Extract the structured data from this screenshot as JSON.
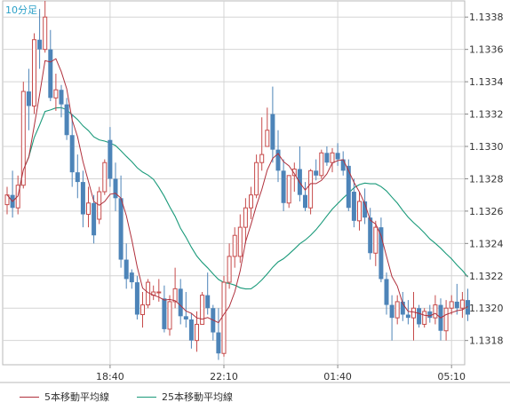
{
  "chart_data": {
    "type": "candlestick",
    "timeframe_label": "10分足",
    "y_ticks": [
      "1.1338",
      "1.1336",
      "1.1334",
      "1.1332",
      "1.1330",
      "1.1328",
      "1.1326",
      "1.1324",
      "1.1322",
      "1.1320",
      "1.1318"
    ],
    "ylim": [
      1.13165,
      1.1339
    ],
    "x_ticks": [
      {
        "label": "18:40",
        "index": 19
      },
      {
        "label": "22:10",
        "index": 40
      },
      {
        "label": "01:40",
        "index": 61
      },
      {
        "label": "05:10",
        "index": 82
      }
    ],
    "grid": true,
    "candles": [
      [
        1.13264,
        1.13275,
        1.13258,
        1.1327
      ],
      [
        1.1327,
        1.13285,
        1.13256,
        1.13262
      ],
      [
        1.13262,
        1.13282,
        1.13258,
        1.13276
      ],
      [
        1.13276,
        1.1334,
        1.13274,
        1.13334
      ],
      [
        1.13334,
        1.13348,
        1.1331,
        1.13325
      ],
      [
        1.13325,
        1.1337,
        1.1332,
        1.13366
      ],
      [
        1.13366,
        1.13385,
        1.13348,
        1.1336
      ],
      [
        1.1336,
        1.1339,
        1.13358,
        1.1338
      ],
      [
        1.1336,
        1.13372,
        1.13328,
        1.1333
      ],
      [
        1.1333,
        1.13345,
        1.13322,
        1.13335
      ],
      [
        1.13335,
        1.13338,
        1.13318,
        1.13326
      ],
      [
        1.13326,
        1.1333,
        1.13304,
        1.13307
      ],
      [
        1.13307,
        1.1332,
        1.13275,
        1.13284
      ],
      [
        1.13284,
        1.13295,
        1.13268,
        1.13278
      ],
      [
        1.13278,
        1.13285,
        1.1325,
        1.13258
      ],
      [
        1.13258,
        1.13275,
        1.1325,
        1.13265
      ],
      [
        1.13265,
        1.1327,
        1.1324,
        1.13245
      ],
      [
        1.13255,
        1.13275,
        1.13252,
        1.13272
      ],
      [
        1.13272,
        1.13292,
        1.1327,
        1.1329
      ],
      [
        1.13304,
        1.13312,
        1.13275,
        1.1328
      ],
      [
        1.1328,
        1.1329,
        1.1326,
        1.13268
      ],
      [
        1.13268,
        1.13282,
        1.13225,
        1.1323
      ],
      [
        1.1323,
        1.1324,
        1.13212,
        1.13218
      ],
      [
        1.13222,
        1.13224,
        1.13212,
        1.13216
      ],
      [
        1.13216,
        1.1322,
        1.13193,
        1.13196
      ],
      [
        1.13196,
        1.1321,
        1.13188,
        1.13202
      ],
      [
        1.13202,
        1.13218,
        1.132,
        1.13216
      ],
      [
        1.13208,
        1.13214,
        1.13205,
        1.1321
      ],
      [
        1.1321,
        1.13218,
        1.13204,
        1.1321
      ],
      [
        1.13206,
        1.13214,
        1.13185,
        1.13187
      ],
      [
        1.13187,
        1.13208,
        1.13183,
        1.13204
      ],
      [
        1.13204,
        1.13225,
        1.132,
        1.13212
      ],
      [
        1.13212,
        1.13218,
        1.1319,
        1.13195
      ],
      [
        1.13195,
        1.1321,
        1.13188,
        1.13193
      ],
      [
        1.13193,
        1.13197,
        1.13175,
        1.1318
      ],
      [
        1.1318,
        1.13198,
        1.13173,
        1.1319
      ],
      [
        1.1319,
        1.1321,
        1.1319,
        1.13208
      ],
      [
        1.13208,
        1.13222,
        1.13196,
        1.132
      ],
      [
        1.132,
        1.13202,
        1.1318,
        1.13185
      ],
      [
        1.13185,
        1.132,
        1.13168,
        1.13172
      ],
      [
        1.13172,
        1.1322,
        1.1317,
        1.13216
      ],
      [
        1.13216,
        1.1324,
        1.13212,
        1.13232
      ],
      [
        1.13232,
        1.1325,
        1.13225,
        1.13245
      ],
      [
        1.13232,
        1.13258,
        1.13228,
        1.1325
      ],
      [
        1.1325,
        1.13268,
        1.1324,
        1.13262
      ],
      [
        1.13262,
        1.13275,
        1.13255,
        1.1327
      ],
      [
        1.1327,
        1.13295,
        1.13268,
        1.1329
      ],
      [
        1.1329,
        1.13318,
        1.13285,
        1.13295
      ],
      [
        1.133,
        1.13324,
        1.133,
        1.1331
      ],
      [
        1.1332,
        1.13337,
        1.1329,
        1.13298
      ],
      [
        1.13298,
        1.1331,
        1.13278,
        1.13285
      ],
      [
        1.13285,
        1.13292,
        1.1326,
        1.13265
      ],
      [
        1.13265,
        1.13282,
        1.13262,
        1.13282
      ],
      [
        1.13282,
        1.1329,
        1.13272,
        1.13286
      ],
      [
        1.13286,
        1.133,
        1.13266,
        1.1327
      ],
      [
        1.1327,
        1.13278,
        1.1326,
        1.13262
      ],
      [
        1.13262,
        1.13286,
        1.13258,
        1.13285
      ],
      [
        1.13285,
        1.13292,
        1.13279,
        1.13282
      ],
      [
        1.13282,
        1.13298,
        1.1328,
        1.13296
      ],
      [
        1.13296,
        1.133,
        1.13288,
        1.1329
      ],
      [
        1.1329,
        1.13299,
        1.13284,
        1.13296
      ],
      [
        1.13296,
        1.13302,
        1.13288,
        1.13292
      ],
      [
        1.13292,
        1.13297,
        1.13282,
        1.13285
      ],
      [
        1.13288,
        1.13292,
        1.1326,
        1.13262
      ],
      [
        1.13272,
        1.1328,
        1.1325,
        1.13254
      ],
      [
        1.13254,
        1.13272,
        1.13248,
        1.13266
      ],
      [
        1.13266,
        1.13274,
        1.13252,
        1.13256
      ],
      [
        1.13256,
        1.13262,
        1.1323,
        1.13234
      ],
      [
        1.13234,
        1.13254,
        1.13226,
        1.1325
      ],
      [
        1.1325,
        1.13256,
        1.13216,
        1.13218
      ],
      [
        1.13218,
        1.13222,
        1.13196,
        1.13202
      ],
      [
        1.13202,
        1.13208,
        1.1318,
        1.13194
      ],
      [
        1.13194,
        1.13208,
        1.1319,
        1.13204
      ],
      [
        1.13204,
        1.1321,
        1.13192,
        1.13196
      ],
      [
        1.13196,
        1.13205,
        1.1319,
        1.13194
      ],
      [
        1.13194,
        1.1321,
        1.1318,
        1.132
      ],
      [
        1.132,
        1.13202,
        1.13188,
        1.1319
      ],
      [
        1.1319,
        1.132,
        1.13188,
        1.13198
      ],
      [
        1.13198,
        1.13202,
        1.13191,
        1.13194
      ],
      [
        1.13194,
        1.13208,
        1.1319,
        1.13202
      ],
      [
        1.13202,
        1.13206,
        1.1318,
        1.13186
      ],
      [
        1.13186,
        1.13205,
        1.1318,
        1.132
      ],
      [
        1.132,
        1.13208,
        1.13196,
        1.13204
      ],
      [
        1.13204,
        1.13215,
        1.13196,
        1.132
      ],
      [
        1.132,
        1.1321,
        1.13194,
        1.13205
      ],
      [
        1.13205,
        1.13212,
        1.13192,
        1.13196
      ]
    ],
    "series": [
      {
        "name": "5本移動平均線",
        "color": "#b0303c"
      },
      {
        "name": "25本移動平均線",
        "color": "#1a9a7a"
      }
    ],
    "colors": {
      "up": "#c64b4b",
      "down": "#4d84b8",
      "grid": "#d4d4d4",
      "axis_text": "#333333"
    }
  }
}
